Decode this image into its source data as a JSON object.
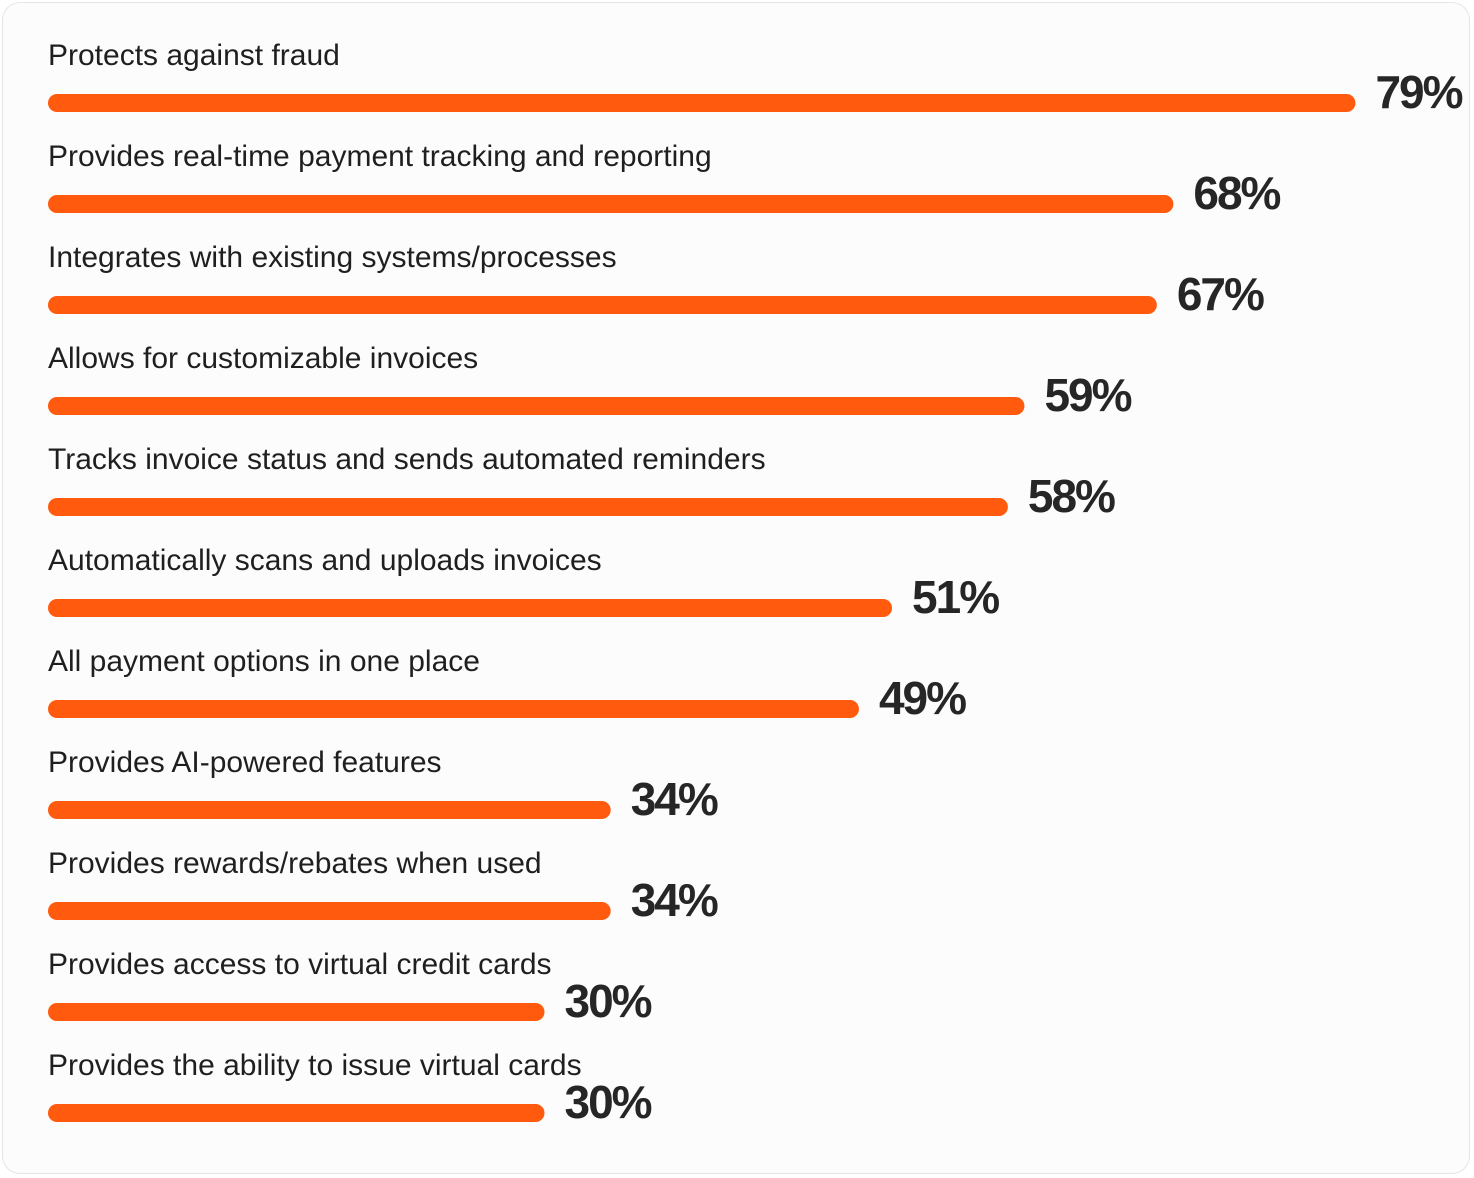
{
  "colors": {
    "bar": "#ff5a0e",
    "text": "#1f1f1f",
    "value_text": "#262626",
    "background": "#fcfcfc"
  },
  "chart_data": {
    "type": "bar",
    "orientation": "horizontal",
    "title": "",
    "xlabel": "",
    "ylabel": "",
    "xlim": [
      0,
      100
    ],
    "grid": false,
    "categories": [
      "Protects against fraud",
      "Provides real-time payment tracking and reporting",
      "Integrates with existing systems/processes",
      "Allows for customizable invoices",
      "Tracks invoice status and sends automated reminders",
      "Automatically scans and uploads invoices",
      "All payment options in one place",
      "Provides AI-powered features",
      "Provides rewards/rebates when used",
      "Provides access to virtual credit cards",
      "Provides the ability to issue virtual cards"
    ],
    "values": [
      79,
      68,
      67,
      59,
      58,
      51,
      49,
      34,
      34,
      30,
      30
    ],
    "value_labels": [
      "79%",
      "68%",
      "67%",
      "59%",
      "58%",
      "51%",
      "49%",
      "34%",
      "34%",
      "30%",
      "30%"
    ]
  }
}
